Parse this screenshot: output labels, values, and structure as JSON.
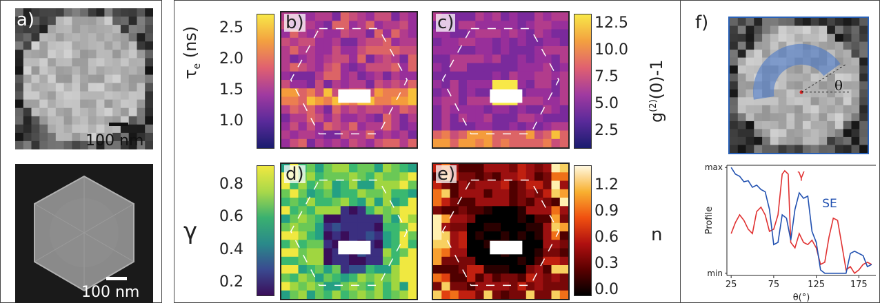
{
  "panels": {
    "a": {
      "label": "a)",
      "scale_top": "100 nm",
      "scale_bottom": "100 nm"
    },
    "b": {
      "label": "b)"
    },
    "c": {
      "label": "c)"
    },
    "d": {
      "label": "d)"
    },
    "e": {
      "label": "e)"
    },
    "f": {
      "label": "f)",
      "angle_symbol": "θ"
    }
  },
  "colorbars": {
    "tau": {
      "ticks": [
        "2.5",
        "2.0",
        "1.5",
        "1.0"
      ],
      "label_main": "τ",
      "label_sub": "e",
      "label_unit": "(ns)"
    },
    "g2": {
      "ticks": [
        "12.5",
        "10.0",
        "7.5",
        "5.0",
        "2.5"
      ],
      "label": "g(2)(0)-1",
      "label_g": "g",
      "label_sup": "(2)",
      "label_rest": "(0)-1"
    },
    "gamma": {
      "ticks": [
        "0.8",
        "0.6",
        "0.4",
        "0.2"
      ],
      "label": "γ"
    },
    "n": {
      "ticks": [
        "1.2",
        "0.9",
        "0.6",
        "0.3",
        "0.0"
      ],
      "label": "n"
    }
  },
  "chart_data": {
    "type": "line",
    "xlabel": "θ(°)",
    "ylabel": "Profile",
    "xticks": [
      "25",
      "75",
      "125",
      "175"
    ],
    "yticks": [
      "max",
      "min"
    ],
    "xlim": [
      20,
      195
    ],
    "ylim": [
      0,
      1
    ],
    "series": [
      {
        "name": "γ",
        "color": "#e03030",
        "x": [
          25,
          30,
          35,
          40,
          45,
          50,
          55,
          60,
          65,
          70,
          75,
          80,
          85,
          88,
          92,
          95,
          100,
          105,
          110,
          115,
          120,
          125,
          130,
          135,
          140,
          145,
          150,
          155,
          160,
          165,
          170,
          175,
          180,
          185,
          190
        ],
        "y": [
          0.38,
          0.48,
          0.55,
          0.5,
          0.42,
          0.38,
          0.58,
          0.62,
          0.55,
          0.4,
          0.42,
          0.55,
          0.92,
          0.95,
          0.92,
          0.3,
          0.25,
          0.38,
          0.3,
          0.28,
          0.32,
          0.25,
          0.1,
          0.12,
          0.35,
          0.52,
          0.5,
          0.28,
          0.05,
          0.08,
          0.02,
          0.05,
          0.1,
          0.12,
          0.1
        ]
      },
      {
        "name": "SE",
        "color": "#2050b0",
        "x": [
          25,
          30,
          35,
          40,
          45,
          50,
          55,
          60,
          65,
          70,
          75,
          80,
          85,
          90,
          95,
          100,
          105,
          110,
          115,
          120,
          125,
          130,
          135,
          140,
          145,
          150,
          155,
          160,
          165,
          170,
          175,
          180,
          185,
          190
        ],
        "y": [
          0.98,
          0.92,
          0.9,
          0.85,
          0.86,
          0.8,
          0.82,
          0.78,
          0.76,
          0.6,
          0.28,
          0.3,
          0.55,
          0.52,
          0.32,
          0.6,
          0.75,
          0.7,
          0.72,
          0.4,
          0.3,
          0.05,
          0.02,
          0.02,
          0.02,
          0.02,
          0.02,
          0.02,
          0.2,
          0.22,
          0.2,
          0.18,
          0.08,
          0.1
        ]
      }
    ]
  },
  "colors": {
    "accent_f": "#2a62b8",
    "gamma": "#e03030",
    "se": "#2050b0"
  }
}
